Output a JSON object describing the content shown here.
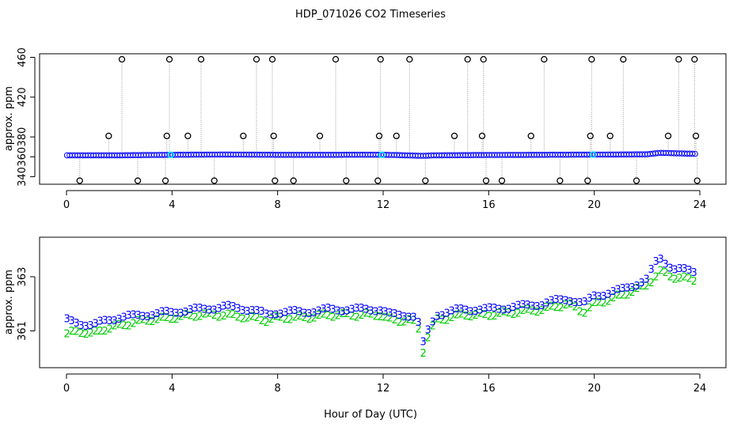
{
  "figure_title": "HDP_071026  CO2 Timeseries",
  "colors": {
    "main_series": "#0000ff",
    "secondary_series": "#00cc00",
    "outlier_marker": "#000000",
    "highlight_marker": "#00ffff",
    "guide_lines": "#999999"
  },
  "chart_data": [
    {
      "type": "scatter",
      "title": "",
      "xlabel": "",
      "ylabel": "approx. ppm",
      "xlim": [
        0,
        24
      ],
      "ylim": [
        334,
        462
      ],
      "xticks": [
        0,
        4,
        8,
        12,
        16,
        20,
        24
      ],
      "yticks": [
        340,
        360,
        380,
        420,
        460
      ],
      "yticklabels": [
        "340",
        "360",
        "380",
        "420",
        "460"
      ],
      "grid": false,
      "baseline": {
        "x": [
          0,
          2,
          4,
          6,
          8,
          10,
          12,
          13.5,
          14,
          16,
          18,
          20,
          22,
          22.5,
          23.8
        ],
        "y": [
          361.5,
          361.5,
          362,
          362.3,
          362,
          362,
          362.1,
          361,
          361.5,
          361.8,
          362,
          362.2,
          362.5,
          364,
          363
        ]
      },
      "outliers_high": [
        2.1,
        3.9,
        5.1,
        7.2,
        7.8,
        10.2,
        11.9,
        13.0,
        15.2,
        15.8,
        18.1,
        19.9,
        21.1,
        23.2,
        23.8
      ],
      "outliers_mid": [
        1.6,
        3.8,
        4.6,
        6.7,
        7.85,
        9.6,
        11.85,
        12.5,
        14.7,
        15.75,
        17.6,
        19.85,
        20.6,
        22.8,
        23.85
      ],
      "outliers_low": [
        0.5,
        2.7,
        3.75,
        5.6,
        7.9,
        8.6,
        10.6,
        11.8,
        13.6,
        15.9,
        16.5,
        18.7,
        19.75,
        21.6,
        23.9
      ],
      "outlier_values": {
        "high": 458,
        "mid": 381,
        "low": 336
      },
      "highlights": [
        {
          "x": 3.95,
          "y": 362
        },
        {
          "x": 11.95,
          "y": 362
        },
        {
          "x": 19.95,
          "y": 362.2
        }
      ]
    },
    {
      "type": "scatter",
      "title": "",
      "xlabel": "Hour of Day (UTC)",
      "ylabel": "approx. ppm",
      "xlim": [
        0,
        24
      ],
      "ylim": [
        359.7,
        364.4
      ],
      "xticks": [
        0,
        4,
        8,
        12,
        16,
        20,
        24
      ],
      "yticks": [
        361,
        363
      ],
      "series": [
        {
          "symbol": "3",
          "x": [
            0,
            0.5,
            1,
            1.5,
            2,
            3,
            4,
            5,
            6,
            7,
            7.6,
            8,
            9,
            10,
            11,
            11.9,
            12.3,
            13,
            13.3,
            13.5,
            13.7,
            14,
            15,
            16,
            17,
            18,
            19,
            19.6,
            20,
            21,
            22,
            22.3,
            22.5,
            23,
            23.8
          ],
          "y": [
            361.4,
            361.3,
            361.2,
            361.4,
            361.5,
            361.6,
            361.7,
            361.8,
            361.9,
            361.8,
            361.6,
            361.7,
            361.7,
            361.8,
            361.8,
            361.8,
            361.6,
            361.6,
            361.5,
            360.5,
            361.0,
            361.6,
            361.8,
            361.8,
            361.9,
            362.0,
            362.2,
            362.0,
            362.3,
            362.5,
            362.9,
            363.5,
            363.7,
            363.3,
            363.2
          ]
        },
        {
          "symbol": "2",
          "x": [
            0,
            0.5,
            1,
            1.5,
            2,
            3,
            4,
            5,
            6,
            7,
            7.6,
            8,
            9,
            10,
            11,
            11.9,
            12.3,
            13,
            13.3,
            13.5,
            13.7,
            14,
            15,
            16,
            17,
            18,
            19,
            19.6,
            20,
            21,
            22,
            22.3,
            22.5,
            23,
            23.8
          ],
          "y": [
            360.9,
            361.0,
            360.9,
            361.1,
            361.2,
            361.4,
            361.5,
            361.6,
            361.6,
            361.5,
            361.4,
            361.5,
            361.5,
            361.6,
            361.6,
            361.6,
            361.4,
            361.4,
            361.3,
            360.2,
            360.8,
            361.4,
            361.6,
            361.6,
            361.7,
            361.8,
            362.0,
            361.7,
            362.0,
            362.3,
            362.7,
            363.0,
            363.2,
            363.0,
            362.9
          ]
        }
      ]
    }
  ]
}
